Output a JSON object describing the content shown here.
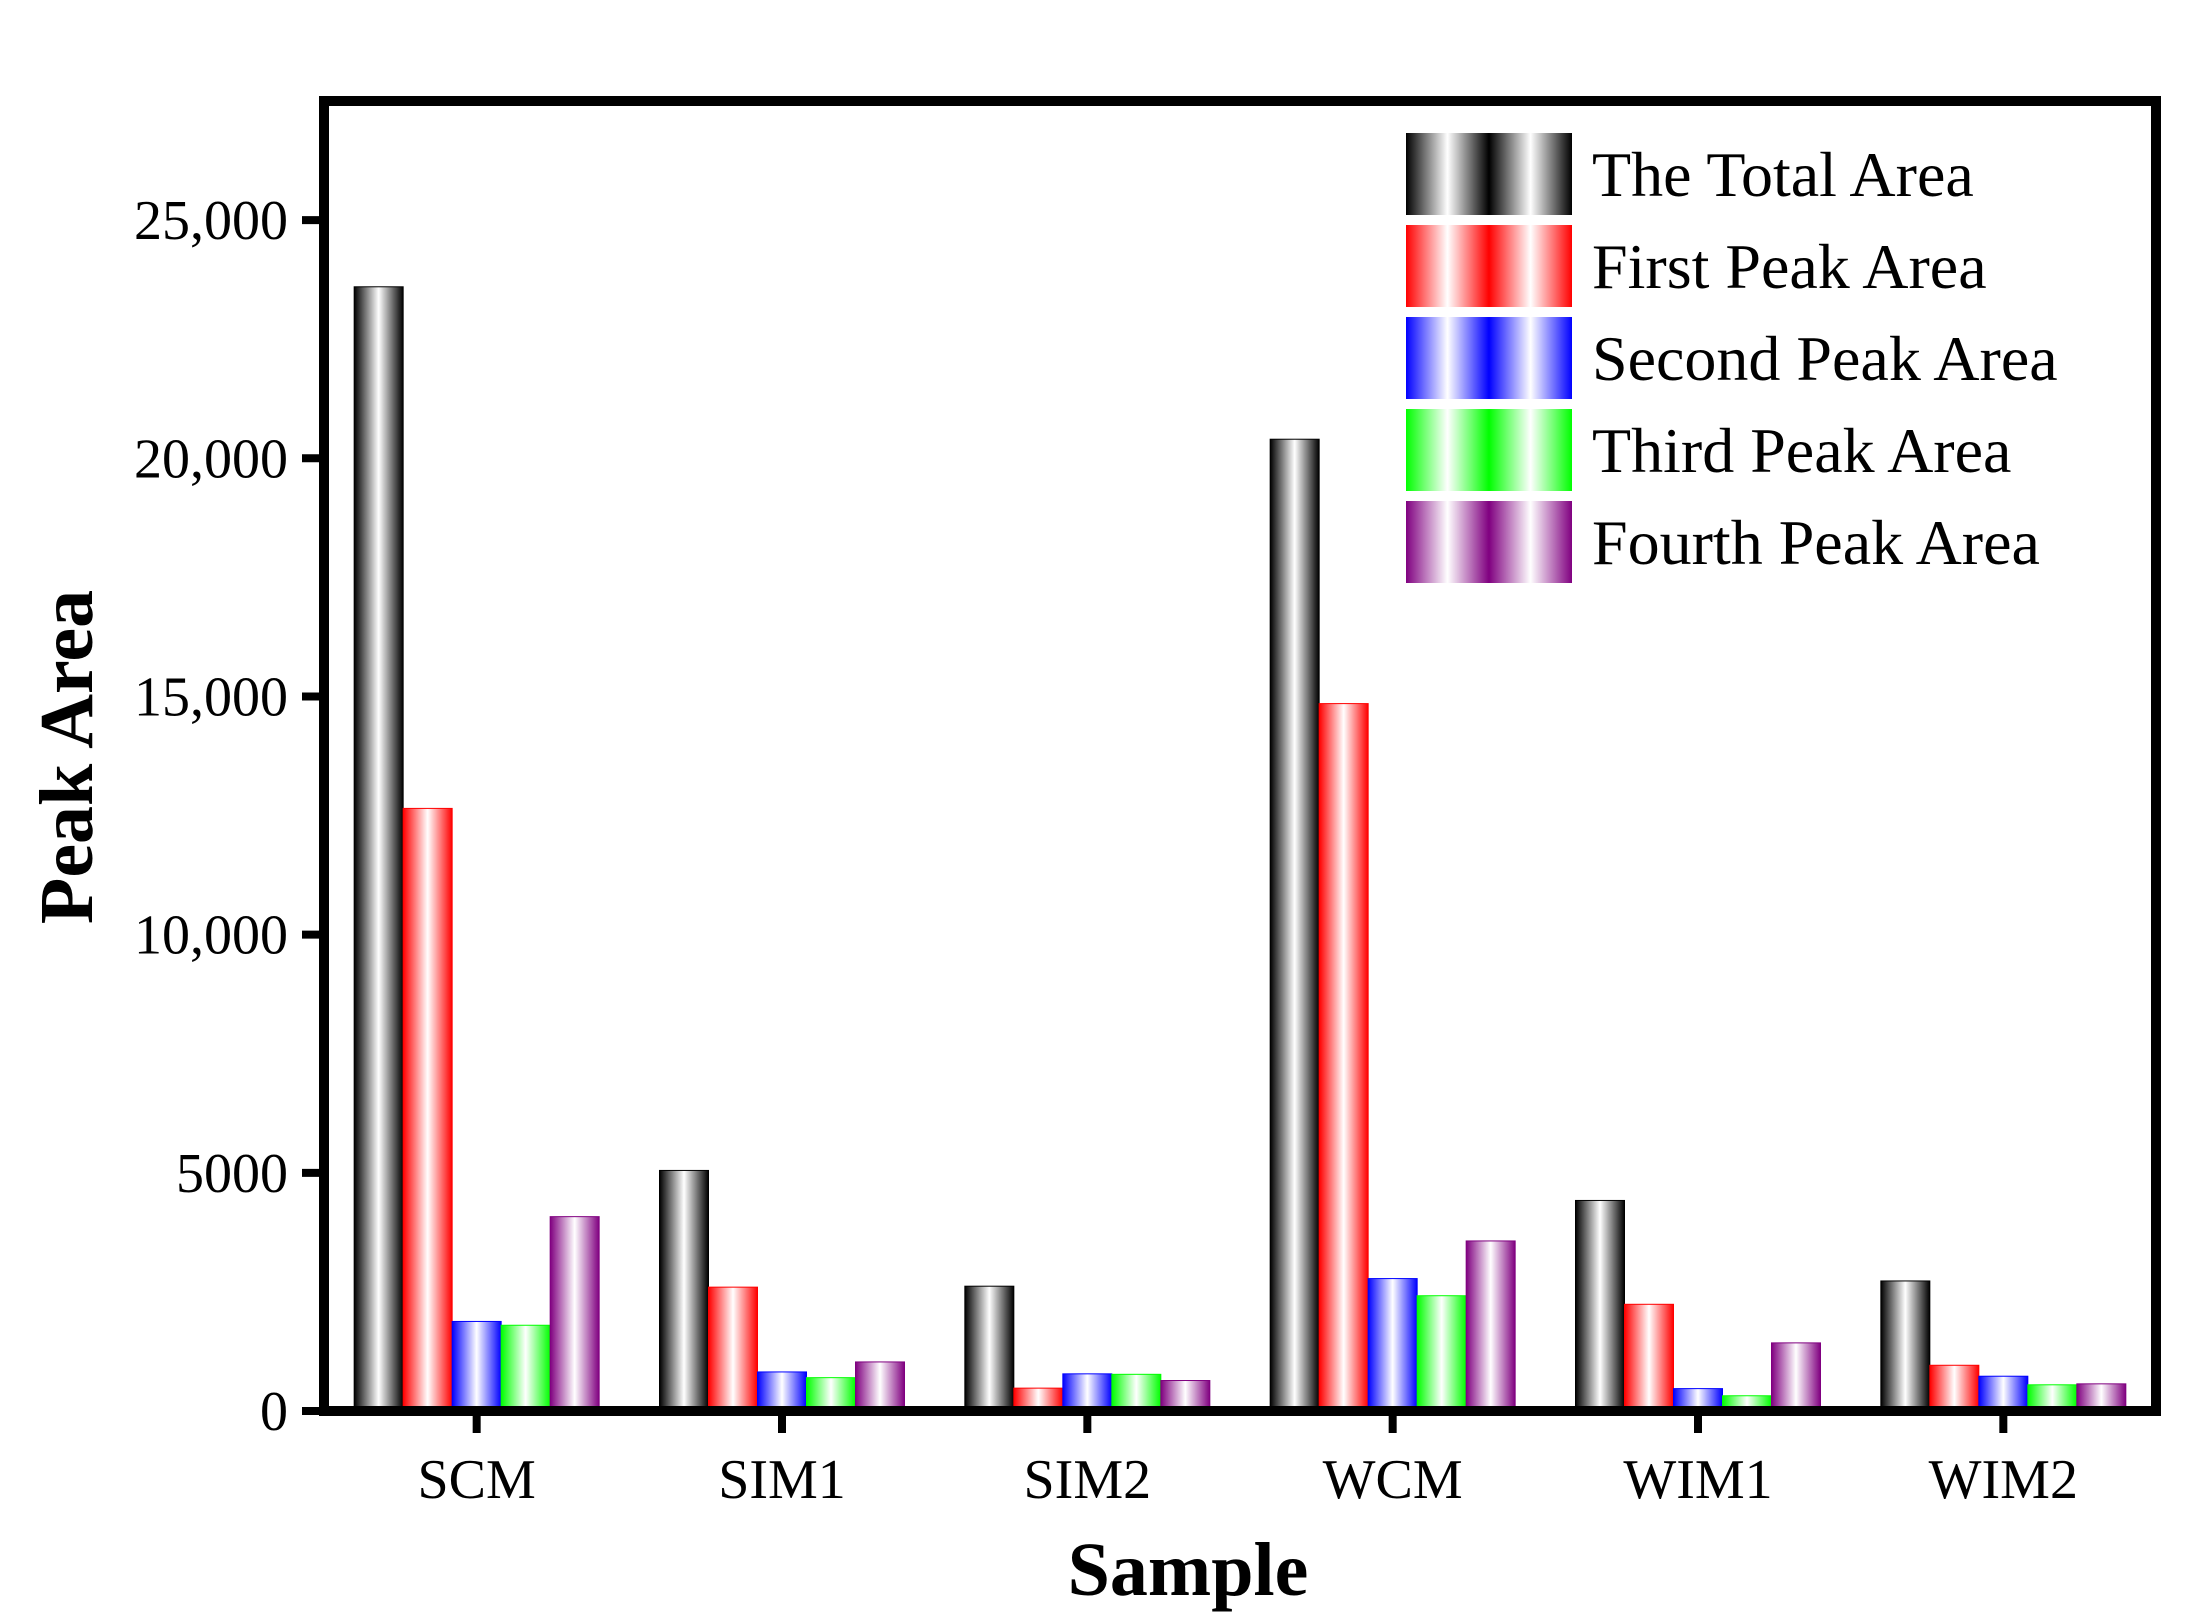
{
  "chart_data": {
    "type": "bar",
    "title": "",
    "xlabel": "Sample",
    "ylabel": "Peak Area",
    "categories": [
      "SCM",
      "SIM1",
      "SIM2",
      "WCM",
      "WIM1",
      "WIM2"
    ],
    "ylim": [
      0,
      27500
    ],
    "yticks": [
      0,
      5000,
      10000,
      15000,
      20000,
      25000
    ],
    "ytick_labels": [
      "0",
      "5000",
      "10,000",
      "15,000",
      "20,000",
      "25,000"
    ],
    "legend_position": "top-right",
    "grid": false,
    "series": [
      {
        "name": "The Total Area",
        "color": "#000000",
        "values": [
          23600,
          5050,
          2620,
          20400,
          4420,
          2730
        ]
      },
      {
        "name": "First Peak Area",
        "color": "#ff0000",
        "values": [
          12650,
          2600,
          480,
          14850,
          2240,
          960
        ]
      },
      {
        "name": "Second Peak Area",
        "color": "#0000ff",
        "values": [
          1880,
          820,
          780,
          2780,
          470,
          730
        ]
      },
      {
        "name": "Third Peak Area",
        "color": "#00ff00",
        "values": [
          1800,
          700,
          770,
          2420,
          320,
          550
        ]
      },
      {
        "name": "Fourth Peak Area",
        "color": "#800080",
        "values": [
          4080,
          1030,
          640,
          3570,
          1430,
          570
        ]
      }
    ]
  }
}
